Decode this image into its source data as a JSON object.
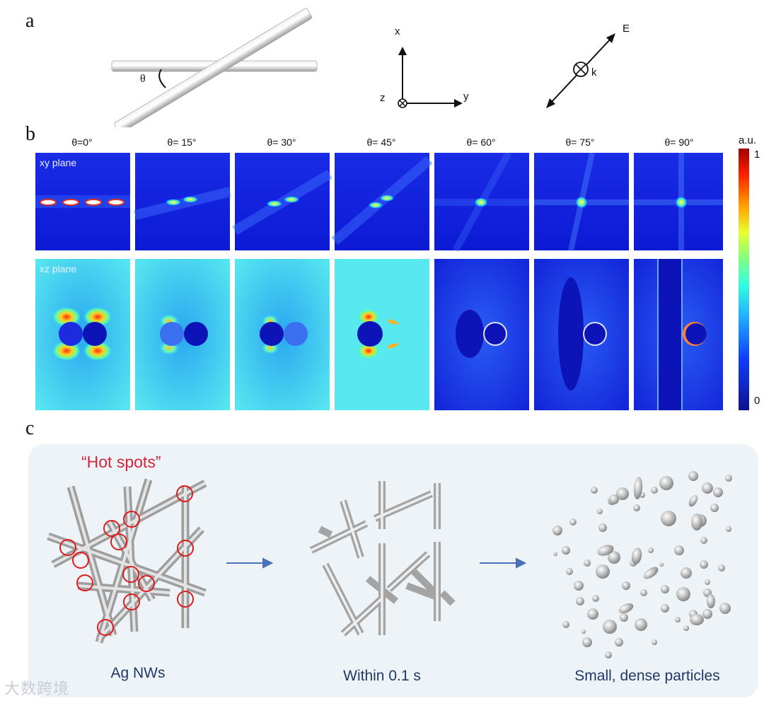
{
  "panel_labels": {
    "a": "a",
    "b": "b",
    "c": "c"
  },
  "panel_a": {
    "angle_symbol": "θ",
    "axes": {
      "x": "x",
      "y": "y",
      "z": "z"
    },
    "field": {
      "e": "E",
      "k": "k"
    }
  },
  "panel_b": {
    "angles": [
      "θ=0°",
      "θ= 15°",
      "θ= 30°",
      "θ= 45°",
      "θ= 60°",
      "θ= 75°",
      "θ= 90°"
    ],
    "row_labels": {
      "xy": "xy plane",
      "xz": "xz plane"
    },
    "colorbar": {
      "unit": "a.u.",
      "max": "1",
      "min": "0"
    }
  },
  "panel_c": {
    "hot_spots": "“Hot spots”",
    "captions": [
      "Ag NWs",
      "Within 0.1 s",
      "Small, dense particles"
    ],
    "colors": {
      "hot": "#d0243a",
      "arrow": "#4a72b8",
      "caption": "#1f3a66"
    }
  },
  "watermark": "大数跨境"
}
